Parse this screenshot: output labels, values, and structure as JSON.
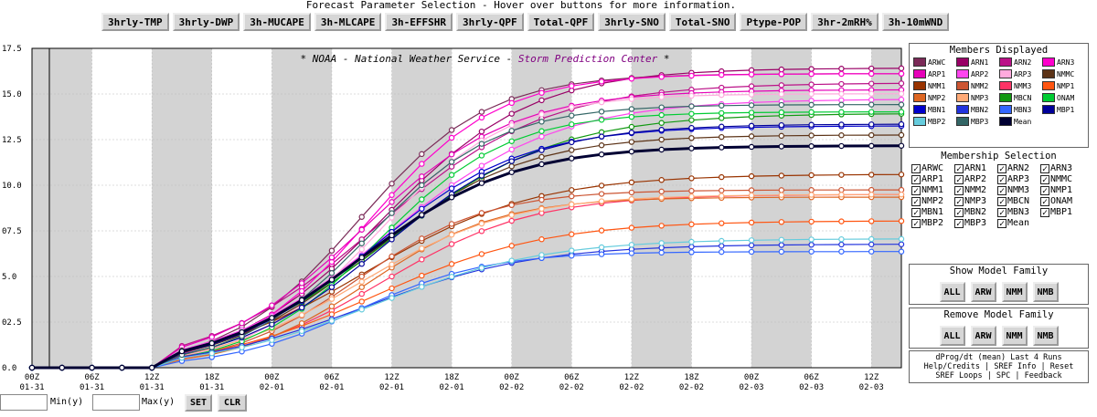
{
  "header": {
    "title": "Forecast Parameter Selection - Hover over buttons for more information.",
    "buttons": [
      "3hrly-TMP",
      "3hrly-DWP",
      "3h-MUCAPE",
      "3h-MLCAPE",
      "3h-EFFSHR",
      "3hrly-QPF",
      "Total-QPF",
      "3hrly-SNO",
      "Total-SNO",
      "Ptype-POP",
      "3hr-2mRH%",
      "3h-10mWND"
    ]
  },
  "banner": {
    "part1": "* NOAA - National Weather Service - ",
    "part2": "Storm Prediction Center",
    "part3": " *"
  },
  "colors": {
    "banner_accent": "#800080",
    "shade": "#d3d3d3",
    "mean": "#000033"
  },
  "chart_data": {
    "type": "line",
    "title": "",
    "ylim": [
      0,
      17.5
    ],
    "yticks": [
      "0.0",
      "02.5",
      "5.0",
      "07.5",
      "10.0",
      "12.5",
      "15.0",
      "17.5"
    ],
    "xtick_labels": [
      [
        "00Z",
        "01-31"
      ],
      [
        "06Z",
        "01-31"
      ],
      [
        "12Z",
        "01-31"
      ],
      [
        "18Z",
        "01-31"
      ],
      [
        "00Z",
        "02-01"
      ],
      [
        "06Z",
        "02-01"
      ],
      [
        "12Z",
        "02-01"
      ],
      [
        "18Z",
        "02-01"
      ],
      [
        "00Z",
        "02-02"
      ],
      [
        "06Z",
        "02-02"
      ],
      [
        "12Z",
        "02-02"
      ],
      [
        "18Z",
        "02-02"
      ],
      [
        "00Z",
        "02-03"
      ],
      [
        "06Z",
        "02-03"
      ],
      [
        "12Z",
        "02-03"
      ]
    ],
    "x_hours": [
      0,
      3,
      6,
      9,
      12,
      15,
      18,
      21,
      24,
      27,
      30,
      33,
      36,
      39,
      42,
      45,
      48,
      51,
      54,
      57,
      60,
      63,
      66,
      69,
      72,
      75,
      78,
      81,
      84,
      87
    ],
    "shaded_intervals_hours": [
      [
        0,
        6
      ],
      [
        12,
        18
      ],
      [
        24,
        30
      ],
      [
        36,
        42
      ],
      [
        48,
        54
      ],
      [
        60,
        66
      ],
      [
        72,
        78
      ],
      [
        84,
        87
      ]
    ],
    "shade_spans": [
      [
        0,
        12
      ],
      [
        24,
        36
      ],
      [
        48,
        60
      ],
      [
        72,
        84
      ]
    ],
    "grid": true,
    "legend": "right",
    "series": [
      {
        "name": "ARWC",
        "color": "#7a2a57",
        "final": 16.2
      },
      {
        "name": "ARN1",
        "color": "#990066",
        "final": 16.6
      },
      {
        "name": "ARN2",
        "color": "#bb1188",
        "final": 15.9
      },
      {
        "name": "ARN3",
        "color": "#ff00cc",
        "final": 16.2
      },
      {
        "name": "ARP1",
        "color": "#e600b8",
        "final": 15.4
      },
      {
        "name": "ARP2",
        "color": "#ff44ee",
        "final": 15.0
      },
      {
        "name": "ARP3",
        "color": "#ffaadd",
        "final": 15.1
      },
      {
        "name": "NMMC",
        "color": "#5c3317",
        "final": 12.9
      },
      {
        "name": "NMM1",
        "color": "#993300",
        "final": 10.8
      },
      {
        "name": "NMM2",
        "color": "#cc5533",
        "final": 9.8
      },
      {
        "name": "NMM3",
        "color": "#ff3366",
        "final": 9.6
      },
      {
        "name": "NMP1",
        "color": "#ff5511",
        "final": 8.2
      },
      {
        "name": "NMP2",
        "color": "#dd6622",
        "final": 9.4
      },
      {
        "name": "NMP3",
        "color": "#ffaa77",
        "final": 9.6
      },
      {
        "name": "MBCN",
        "color": "#119911",
        "final": 14.2
      },
      {
        "name": "ONAM",
        "color": "#00cc33",
        "final": 14.1
      },
      {
        "name": "MBN1",
        "color": "#0000cc",
        "final": 13.4
      },
      {
        "name": "MBN2",
        "color": "#2233dd",
        "final": 6.9
      },
      {
        "name": "MBN3",
        "color": "#3366ff",
        "final": 6.4
      },
      {
        "name": "MBP1",
        "color": "#000099",
        "final": 13.5
      },
      {
        "name": "MBP2",
        "color": "#66ccdd",
        "final": 7.2
      },
      {
        "name": "MBP3",
        "color": "#336666",
        "final": 14.5
      },
      {
        "name": "Mean",
        "color": "#000033",
        "final": 12.3
      }
    ]
  },
  "sidebar": {
    "members_title": "Members Displayed",
    "selection_title": "Membership Selection",
    "show_title": "Show Model Family",
    "remove_title": "Remove Model Family",
    "family_buttons": [
      "ALL",
      "ARW",
      "NMM",
      "NMB"
    ],
    "links_line1": "dProg/dt (mean) Last 4 Runs",
    "links_line2": "Help/Credits | SREF Info | Reset",
    "links_line3": "SREF Loops | SPC | Feedback"
  },
  "bottom": {
    "min_label": "Min(y)",
    "max_label": "Max(y)",
    "set_label": "SET",
    "clr_label": "CLR"
  }
}
